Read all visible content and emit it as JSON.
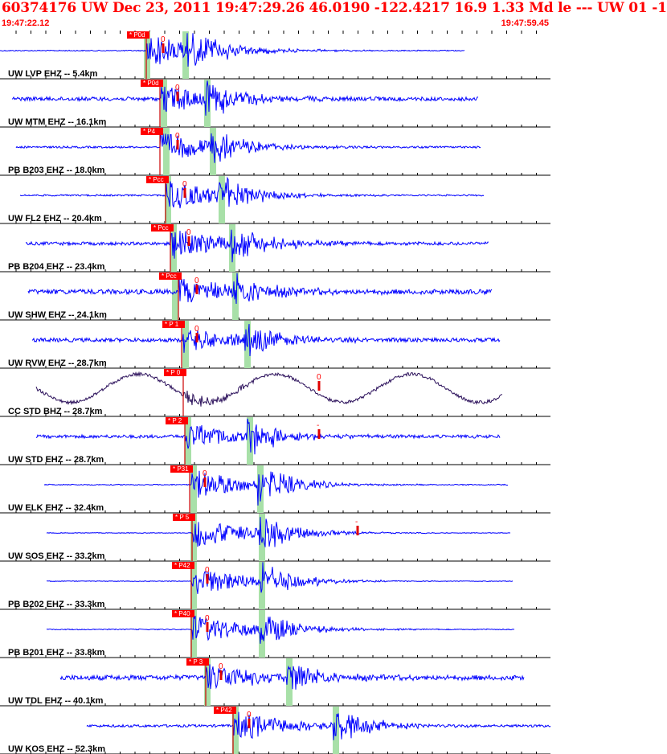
{
  "header": {
    "title": "60374176 UW Dec 23, 2011 19:47:29.26   46.0190 -122.4217 16.9 1.33 Md le --- UW 01   -1",
    "time_start": "19:47:22.12",
    "time_end": "19:47:59.45"
  },
  "colors": {
    "trace": "#0000ff",
    "trace_alt": "#2a0f5a",
    "pick_box": "#ff0000",
    "pick_line": "#cc0000",
    "window_band": "#a8e0a8",
    "title": "#ff0000"
  },
  "traces": [
    {
      "label": "UW LVP EHZ -- 5.4km",
      "pick": "P0d",
      "amp_mark": "0"
    },
    {
      "label": "UW MTM EHZ -- 16.1km",
      "pick": "P0d",
      "amp_mark": "0"
    },
    {
      "label": "PB B203 EHZ -- 18.0km",
      "pick": "P4",
      "amp_mark": "0"
    },
    {
      "label": "UW FL2 EHZ -- 20.4km",
      "pick": "Pcc",
      "amp_mark": "0"
    },
    {
      "label": "PB B204 EHZ -- 23.4km",
      "pick": "Pcc",
      "amp_mark": "0"
    },
    {
      "label": "UW SHW EHZ -- 24.1km",
      "pick": "Pcc",
      "amp_mark": "0"
    },
    {
      "label": "UW RVW EHZ -- 28.7km",
      "pick": "P 1",
      "amp_mark": "0"
    },
    {
      "label": "CC STD BHZ -- 28.7km",
      "pick": "P 0",
      "amp_mark": "0"
    },
    {
      "label": "UW STD EHZ -- 28.7km",
      "pick": "P 2",
      "amp_mark": "-"
    },
    {
      "label": "UW ELK EHZ -- 32.4km",
      "pick": "P31",
      "amp_mark": "0"
    },
    {
      "label": "UW SOS EHZ -- 33.2km",
      "pick": "P 5",
      "amp_mark": "-"
    },
    {
      "label": "PB B202 EHZ -- 33.3km",
      "pick": "P42",
      "amp_mark": "0"
    },
    {
      "label": "PB B201 EHZ -- 33.8km",
      "pick": "P40",
      "amp_mark": "0"
    },
    {
      "label": "UW TDL EHZ -- 40.1km",
      "pick": "P 3",
      "amp_mark": "0"
    },
    {
      "label": "UW KOS EHZ -- 52.3km",
      "pick": "P42",
      "amp_mark": "0"
    }
  ]
}
